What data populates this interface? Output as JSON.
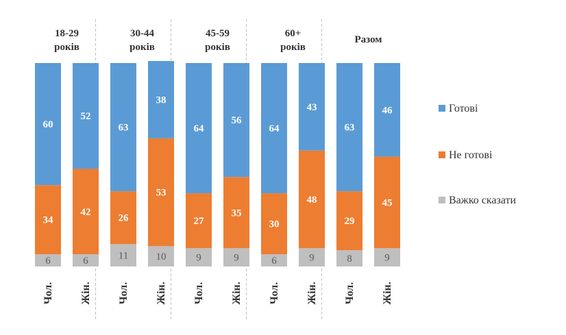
{
  "chart_data": {
    "type": "bar",
    "stacked": true,
    "groups": [
      {
        "title_lines": [
          "18-29",
          "років"
        ],
        "categories": [
          "Чол.",
          "Жін."
        ]
      },
      {
        "title_lines": [
          "30-44",
          "років"
        ],
        "categories": [
          "Чол.",
          "Жін."
        ]
      },
      {
        "title_lines": [
          "45-59",
          "років"
        ],
        "categories": [
          "Чол.",
          "Жін."
        ]
      },
      {
        "title_lines": [
          "60+",
          "років"
        ],
        "categories": [
          "Чол.",
          "Жін."
        ]
      },
      {
        "title_lines": [
          "Разом"
        ],
        "categories": [
          "Чол.",
          "Жін."
        ]
      }
    ],
    "series": [
      {
        "name": "Важко сказати",
        "color": "#bfbfbf",
        "values": [
          6,
          6,
          11,
          10,
          9,
          9,
          6,
          9,
          8,
          9
        ]
      },
      {
        "name": "Не готові",
        "color": "#ed7d31",
        "values": [
          34,
          42,
          26,
          53,
          27,
          35,
          30,
          48,
          29,
          45
        ]
      },
      {
        "name": "Готові",
        "color": "#5b9bd5",
        "values": [
          60,
          52,
          63,
          38,
          64,
          56,
          64,
          43,
          63,
          46
        ]
      }
    ],
    "legend_order": [
      "Готові",
      "Не готові",
      "Важко сказати"
    ],
    "legend_position": "right",
    "ylim": [
      0,
      100
    ],
    "grid": false
  }
}
